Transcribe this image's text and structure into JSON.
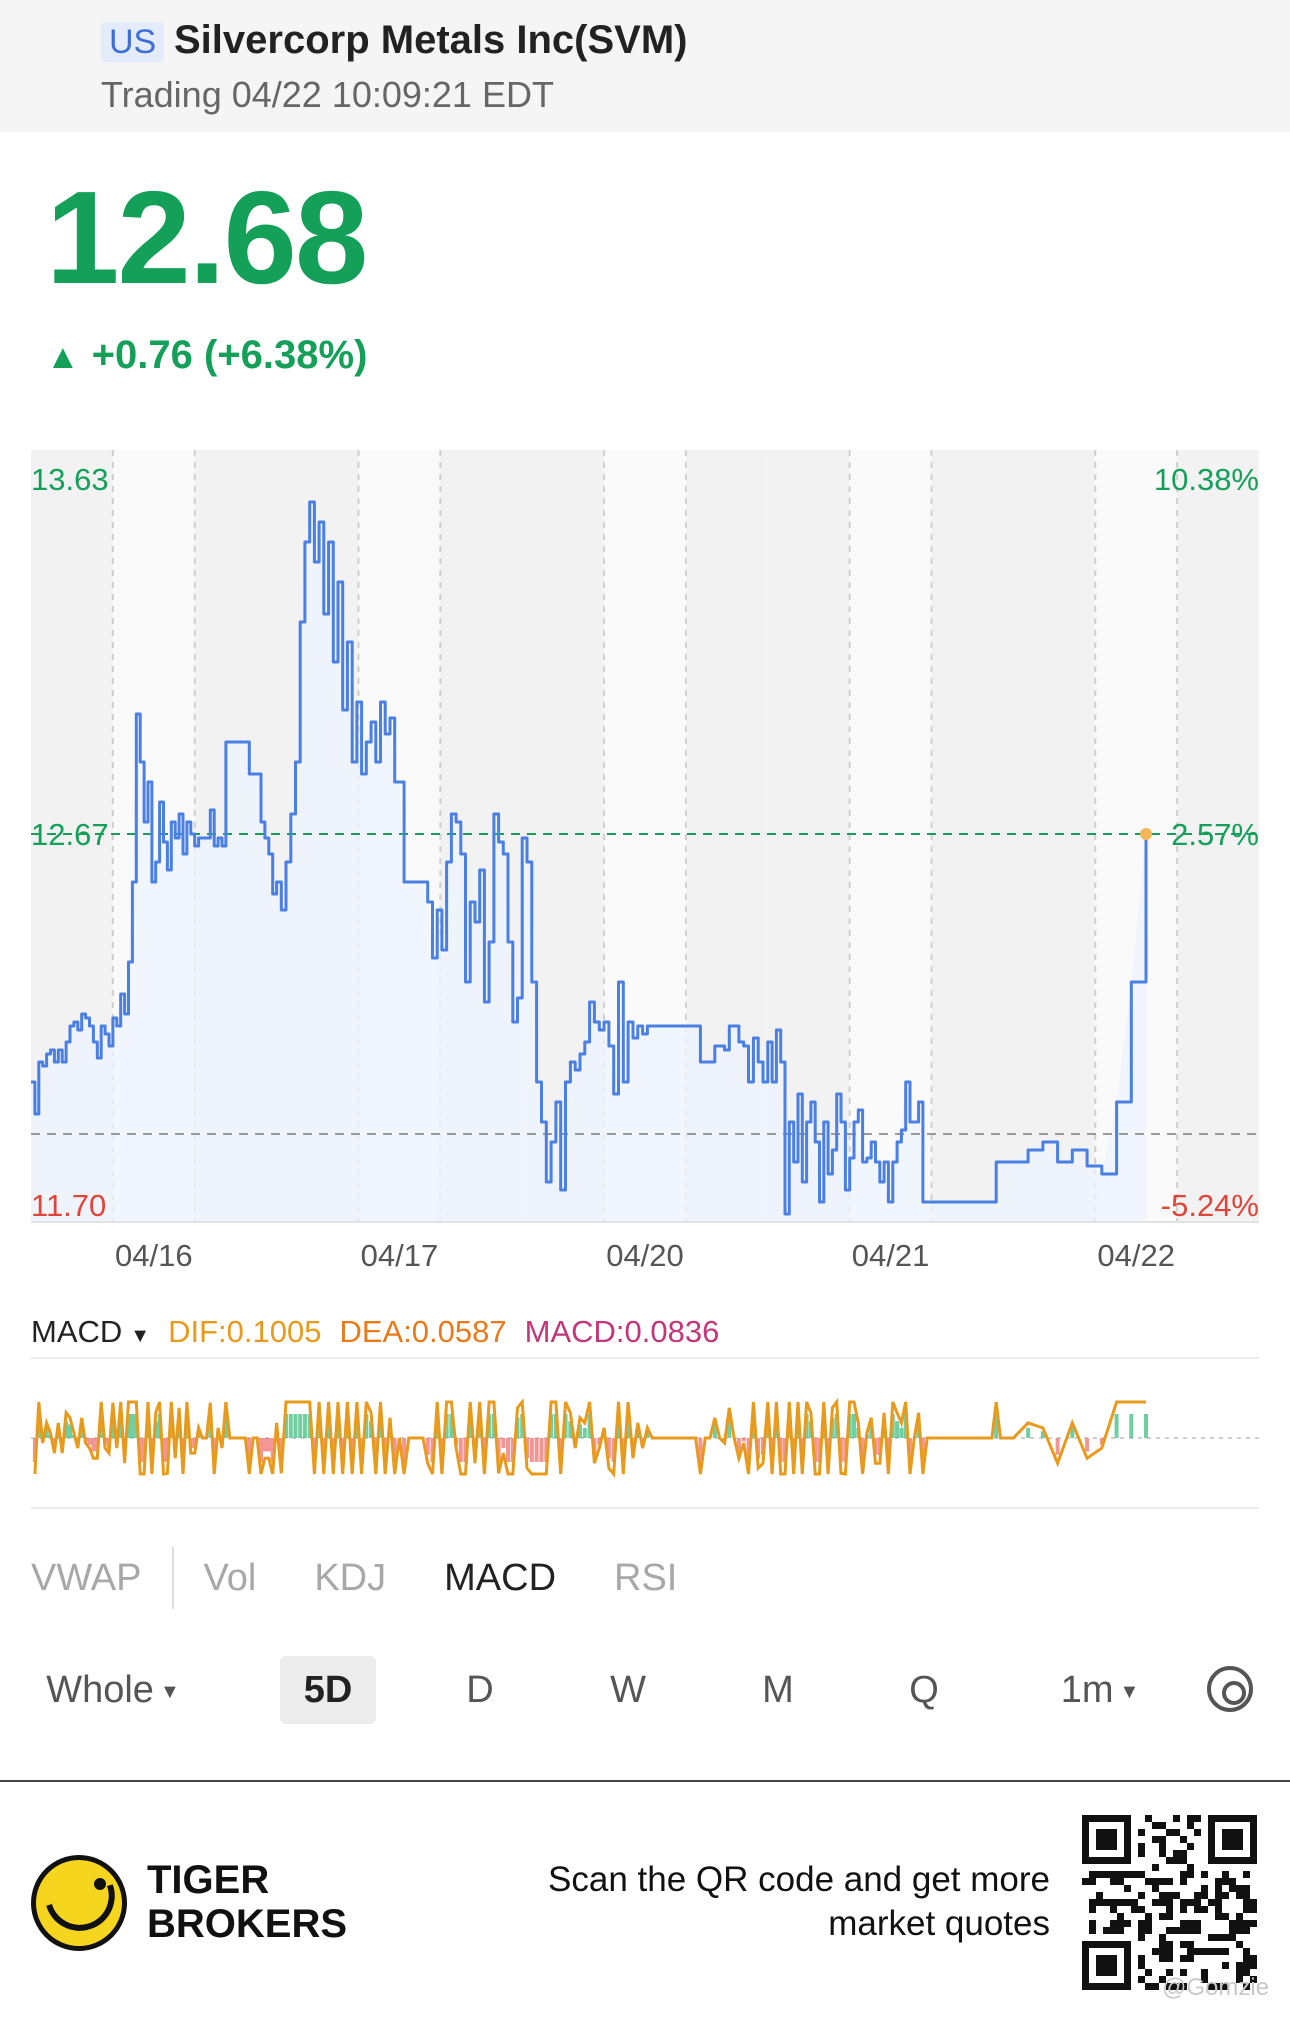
{
  "header": {
    "market": "US",
    "title": "Silvercorp Metals Inc(SVM)",
    "status": "Trading 04/22 10:09:21 EDT"
  },
  "quote": {
    "price": "12.68",
    "change_arrow": "▲",
    "change": "+0.76 (+6.38%)"
  },
  "colors": {
    "up": "#15a05a",
    "down": "#e0453a",
    "line": "#4a7fe3",
    "fill": "#eef3fd",
    "dif": "#e89a1c",
    "macd_pos": "#4cc28a",
    "macd_neg": "#f07a7a"
  },
  "chart_data": {
    "type": "line",
    "y_axis_left": {
      "max_label": "13.63",
      "min_label": "11.70",
      "ref_label": "12.67"
    },
    "y_axis_right": {
      "max_label": "10.38%",
      "min_label": "-5.24%",
      "ref_label": "2.57%"
    },
    "ylim": [
      11.7,
      13.63
    ],
    "prev_close": 11.92,
    "current": 12.67,
    "x_tick_labels": [
      "04/16",
      "04/17",
      "04/20",
      "04/21",
      "04/22"
    ],
    "grid": true,
    "days": [
      {
        "date": "04/16",
        "values": [
          12.05,
          11.97,
          12.1,
          12.09,
          12.12,
          12.13,
          12.1,
          12.13,
          12.1,
          12.15,
          12.19,
          12.2,
          12.18,
          12.22,
          12.21,
          12.19,
          12.15,
          12.11,
          12.19,
          12.17,
          12.14,
          12.21,
          12.19,
          12.27,
          12.22,
          12.35,
          12.55,
          12.97,
          12.85,
          12.7,
          12.8,
          12.55,
          12.6,
          12.75,
          12.65,
          12.58,
          12.7,
          12.66,
          12.72,
          12.62,
          12.7,
          12.67,
          12.64,
          12.66,
          12.66,
          12.66,
          12.73,
          12.64,
          12.66,
          12.64,
          12.9,
          12.9,
          12.9,
          12.9,
          12.9,
          12.9,
          12.82,
          12.82,
          12.82,
          12.7,
          12.66,
          12.62,
          12.52
        ]
      },
      {
        "date": "04/17",
        "values": [
          12.55,
          12.48,
          12.6,
          12.72,
          12.85,
          13.2,
          13.4,
          13.5,
          13.35,
          13.45,
          13.22,
          13.4,
          13.1,
          13.3,
          12.98,
          13.15,
          12.85,
          13.0,
          12.82,
          12.9,
          12.95,
          12.85,
          13.0,
          12.92,
          12.96,
          12.8,
          12.8,
          12.55,
          12.55,
          12.55,
          12.55,
          12.55,
          12.5,
          12.36,
          12.48,
          12.38,
          12.6,
          12.72,
          12.7,
          12.62,
          12.3,
          12.5,
          12.45,
          12.58,
          12.25,
          12.4,
          12.72,
          12.65,
          12.62,
          12.4,
          12.2,
          12.26
        ]
      },
      {
        "date": "04/20",
        "values": [
          12.66,
          12.6,
          12.3,
          12.05,
          11.95,
          11.8,
          11.9,
          12.0,
          11.78,
          12.05,
          12.1,
          12.08,
          12.12,
          12.15,
          12.25,
          12.2,
          12.18,
          12.2,
          12.14,
          12.02,
          12.3,
          12.05,
          12.2,
          12.16,
          12.19,
          12.17,
          12.19,
          12.19,
          12.19,
          12.19,
          12.19,
          12.19,
          12.19,
          12.19,
          12.19,
          12.19,
          12.19,
          12.1,
          12.1,
          12.1,
          12.14,
          12.14,
          12.13,
          12.19,
          12.19,
          12.15,
          12.14,
          12.05,
          12.16,
          12.1,
          12.05
        ]
      },
      {
        "date": "04/21",
        "values": [
          12.15,
          12.05,
          12.18,
          12.1,
          11.72,
          11.95,
          11.85,
          12.02,
          11.8,
          11.95,
          12.0,
          11.9,
          11.75,
          11.95,
          11.82,
          11.88,
          12.02,
          11.95,
          11.78,
          11.86,
          11.95,
          11.98,
          11.85,
          11.86,
          11.9,
          11.85,
          11.8,
          11.85,
          11.75,
          11.85,
          11.9,
          11.93,
          12.05,
          11.95,
          11.95,
          12.0,
          11.75,
          11.75,
          11.75,
          11.75,
          11.75,
          11.75,
          11.75,
          11.75,
          11.75,
          11.75,
          11.75,
          11.75,
          11.75,
          11.75,
          11.75,
          11.75,
          11.75,
          11.85,
          11.85,
          11.85,
          11.85
        ]
      },
      {
        "date": "04/22",
        "values": [
          11.85,
          11.88,
          11.9,
          11.85,
          11.88,
          11.84,
          11.82,
          12.0,
          12.3,
          12.67
        ]
      }
    ]
  },
  "macd": {
    "indicator": "MACD",
    "dif_label": "DIF:0.1005",
    "dea_label": "DEA:0.0587",
    "macd_label": "MACD:0.0836"
  },
  "indicators": {
    "tabs": [
      "VWAP",
      "Vol",
      "KDJ",
      "MACD",
      "RSI"
    ],
    "active": "MACD"
  },
  "periods": {
    "whole": "Whole",
    "items": [
      "5D",
      "D",
      "W",
      "M",
      "Q"
    ],
    "active": "5D",
    "interval": "1m",
    "settings_icon": "settings-icon"
  },
  "footer": {
    "brand_line1": "TIGER",
    "brand_line2": "BROKERS",
    "scan_line1": "Scan the QR code and get more",
    "scan_line2": "market quotes",
    "watermark": "@Gomzie"
  }
}
